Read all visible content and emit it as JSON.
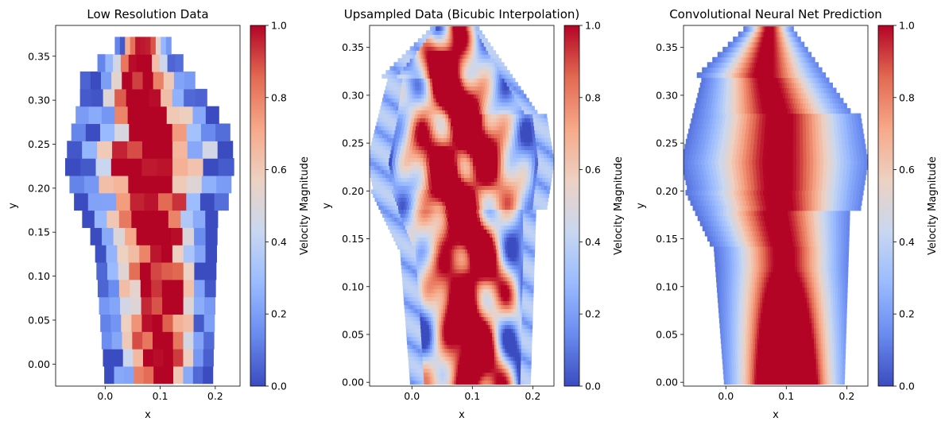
{
  "chart_data": [
    {
      "type": "heatmap",
      "title": "Low Resolution Data",
      "xlabel": "x",
      "ylabel": "y",
      "xlim": [
        -0.09,
        0.245
      ],
      "ylim": [
        -0.025,
        0.385
      ],
      "xticks": [
        0.0,
        0.1,
        0.2
      ],
      "xtick_labels": [
        "0.0",
        "0.1",
        "0.2"
      ],
      "yticks": [
        0.0,
        0.05,
        0.1,
        0.15,
        0.2,
        0.25,
        0.3,
        0.35
      ],
      "ytick_labels": [
        "0.00",
        "0.05",
        "0.10",
        "0.15",
        "0.20",
        "0.25",
        "0.30",
        "0.35"
      ],
      "colorbar_label": "Velocity Magnitude",
      "colorbar_range": [
        0.0,
        1.0
      ],
      "colorbar_ticks": [
        0.0,
        0.2,
        0.4,
        0.6,
        0.8,
        1.0
      ],
      "colorbar_tick_labels": [
        "0.0",
        "0.2",
        "0.4",
        "0.6",
        "0.8",
        "1.0"
      ],
      "grid": false
    },
    {
      "type": "heatmap",
      "title": "Upsampled Data (Bicubic Interpolation)",
      "xlabel": "x",
      "ylabel": "y",
      "xlim": [
        -0.07,
        0.235
      ],
      "ylim": [
        -0.004,
        0.373
      ],
      "xticks": [
        0.0,
        0.1,
        0.2
      ],
      "xtick_labels": [
        "0.0",
        "0.1",
        "0.2"
      ],
      "yticks": [
        0.0,
        0.05,
        0.1,
        0.15,
        0.2,
        0.25,
        0.3,
        0.35
      ],
      "ytick_labels": [
        "0.00",
        "0.05",
        "0.10",
        "0.15",
        "0.20",
        "0.25",
        "0.30",
        "0.35"
      ],
      "colorbar_label": "Velocity Magnitude",
      "colorbar_range": [
        0.0,
        1.0
      ],
      "colorbar_ticks": [
        0.0,
        0.2,
        0.4,
        0.6,
        0.8,
        1.0
      ],
      "colorbar_tick_labels": [
        "0.0",
        "0.2",
        "0.4",
        "0.6",
        "0.8",
        "1.0"
      ],
      "grid": false
    },
    {
      "type": "heatmap",
      "title": "Convolutional Neural Net Prediction",
      "xlabel": "x",
      "ylabel": "y",
      "xlim": [
        -0.07,
        0.235
      ],
      "ylim": [
        -0.004,
        0.373
      ],
      "xticks": [
        0.0,
        0.1,
        0.2
      ],
      "xtick_labels": [
        "0.0",
        "0.1",
        "0.2"
      ],
      "yticks": [
        0.0,
        0.05,
        0.1,
        0.15,
        0.2,
        0.25,
        0.3,
        0.35
      ],
      "ytick_labels": [
        "0.00",
        "0.05",
        "0.10",
        "0.15",
        "0.20",
        "0.25",
        "0.30",
        "0.35"
      ],
      "colorbar_label": "Velocity Magnitude",
      "colorbar_range": [
        0.0,
        1.0
      ],
      "colorbar_ticks": [
        0.0,
        0.2,
        0.4,
        0.6,
        0.8,
        1.0
      ],
      "colorbar_tick_labels": [
        "0.0",
        "0.2",
        "0.4",
        "0.6",
        "0.8",
        "1.0"
      ],
      "grid": false
    }
  ],
  "colormap": {
    "name": "coolwarm",
    "stops": [
      "#3b4cc0",
      "#6a8bef",
      "#9abbff",
      "#c9d7f0",
      "#edd1c2",
      "#f7a889",
      "#e26952",
      "#b40426"
    ]
  }
}
